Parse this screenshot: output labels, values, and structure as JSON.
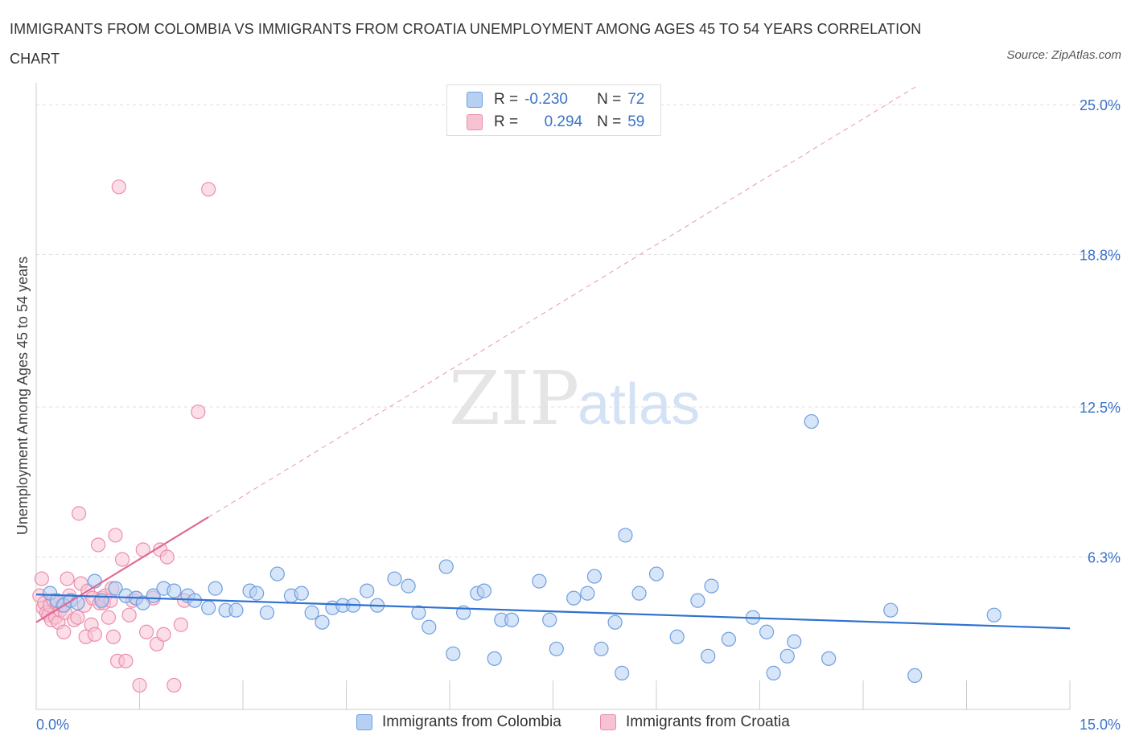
{
  "title": "IMMIGRANTS FROM COLOMBIA VS IMMIGRANTS FROM CROATIA UNEMPLOYMENT AMONG AGES 45 TO 54 YEARS CORRELATION CHART",
  "source": "Source: ZipAtlas.com",
  "watermark": {
    "zip": "ZIP",
    "atlas": "atlas"
  },
  "colors": {
    "colombia_fill": "#b7d0f2",
    "colombia_stroke": "#6f9fe0",
    "colombia_line": "#2f72d0",
    "croatia_fill": "#f7c3d3",
    "croatia_stroke": "#ec8eac",
    "croatia_line": "#e06a96",
    "axis_label": "#3b73c8",
    "grid": "#dddddd"
  },
  "legend": {
    "r_label": "R =",
    "n_label": "N =",
    "colombia": {
      "r": "-0.230",
      "n": "72"
    },
    "croatia": {
      "r": "0.294",
      "n": "59"
    }
  },
  "chart_data": {
    "type": "scatter",
    "title": "IMMIGRANTS FROM COLOMBIA VS IMMIGRANTS FROM CROATIA UNEMPLOYMENT AMONG AGES 45 TO 54 YEARS CORRELATION CHART",
    "xlabel": "",
    "ylabel": "Unemployment Among Ages 45 to 54 years",
    "xlim": [
      0,
      15
    ],
    "ylim": [
      0,
      25.9
    ],
    "x_tick_labels": {
      "min": "0.0%",
      "max": "15.0%"
    },
    "y_ticks": [
      {
        "value": 6.3,
        "label": "6.3%"
      },
      {
        "value": 12.5,
        "label": "12.5%"
      },
      {
        "value": 18.8,
        "label": "18.8%"
      },
      {
        "value": 25.0,
        "label": "25.0%"
      }
    ],
    "legend_position": "bottom",
    "series": [
      {
        "name": "Immigrants from Colombia",
        "r": -0.23,
        "n": 72,
        "trend": {
          "x0": 0.0,
          "y0": 4.75,
          "x1": 15.0,
          "y1": 3.35
        },
        "points": [
          [
            0.2,
            4.8
          ],
          [
            0.3,
            4.5
          ],
          [
            0.4,
            4.3
          ],
          [
            0.5,
            4.5
          ],
          [
            0.6,
            4.4
          ],
          [
            0.85,
            5.3
          ],
          [
            0.95,
            4.5
          ],
          [
            1.15,
            5.0
          ],
          [
            1.3,
            4.7
          ],
          [
            1.45,
            4.6
          ],
          [
            1.55,
            4.4
          ],
          [
            1.7,
            4.7
          ],
          [
            1.85,
            5.0
          ],
          [
            2.0,
            4.9
          ],
          [
            2.2,
            4.7
          ],
          [
            2.3,
            4.5
          ],
          [
            2.5,
            4.2
          ],
          [
            2.6,
            5.0
          ],
          [
            2.75,
            4.1
          ],
          [
            2.9,
            4.1
          ],
          [
            3.1,
            4.9
          ],
          [
            3.2,
            4.8
          ],
          [
            3.35,
            4.0
          ],
          [
            3.5,
            5.6
          ],
          [
            3.7,
            4.7
          ],
          [
            3.85,
            4.8
          ],
          [
            4.0,
            4.0
          ],
          [
            4.15,
            3.6
          ],
          [
            4.3,
            4.2
          ],
          [
            4.45,
            4.3
          ],
          [
            4.6,
            4.3
          ],
          [
            4.8,
            4.9
          ],
          [
            4.95,
            4.3
          ],
          [
            5.2,
            5.4
          ],
          [
            5.4,
            5.1
          ],
          [
            5.55,
            4.0
          ],
          [
            5.7,
            3.4
          ],
          [
            5.95,
            5.9
          ],
          [
            6.05,
            2.3
          ],
          [
            6.2,
            4.0
          ],
          [
            6.4,
            4.8
          ],
          [
            6.5,
            4.9
          ],
          [
            6.65,
            2.1
          ],
          [
            6.75,
            3.7
          ],
          [
            6.9,
            3.7
          ],
          [
            7.3,
            5.3
          ],
          [
            7.45,
            3.7
          ],
          [
            7.55,
            2.5
          ],
          [
            7.8,
            4.6
          ],
          [
            8.0,
            4.8
          ],
          [
            8.1,
            5.5
          ],
          [
            8.2,
            2.5
          ],
          [
            8.4,
            3.6
          ],
          [
            8.5,
            1.5
          ],
          [
            8.55,
            7.2
          ],
          [
            8.75,
            4.8
          ],
          [
            9.0,
            5.6
          ],
          [
            9.3,
            3.0
          ],
          [
            9.6,
            4.5
          ],
          [
            9.75,
            2.2
          ],
          [
            9.8,
            5.1
          ],
          [
            10.05,
            2.9
          ],
          [
            10.4,
            3.8
          ],
          [
            10.6,
            3.2
          ],
          [
            10.7,
            1.5
          ],
          [
            10.9,
            2.2
          ],
          [
            11.0,
            2.8
          ],
          [
            11.25,
            11.9
          ],
          [
            11.5,
            2.1
          ],
          [
            12.4,
            4.1
          ],
          [
            12.75,
            1.4
          ],
          [
            13.9,
            3.9
          ]
        ]
      },
      {
        "name": "Immigrants from Croatia",
        "r": 0.294,
        "n": 59,
        "trend": {
          "x0": 0.0,
          "y0": 3.6,
          "x1": 2.5,
          "y1": 7.95
        },
        "trend_ext": {
          "x0": 2.5,
          "y0": 7.95,
          "x1": 12.8,
          "y1": 25.8
        },
        "points": [
          [
            0.05,
            4.7
          ],
          [
            0.08,
            5.4
          ],
          [
            0.1,
            4.2
          ],
          [
            0.12,
            4.4
          ],
          [
            0.15,
            4.0
          ],
          [
            0.18,
            3.9
          ],
          [
            0.2,
            4.3
          ],
          [
            0.22,
            3.7
          ],
          [
            0.25,
            4.5
          ],
          [
            0.28,
            3.8
          ],
          [
            0.3,
            4.4
          ],
          [
            0.32,
            3.6
          ],
          [
            0.35,
            4.1
          ],
          [
            0.38,
            4.3
          ],
          [
            0.4,
            3.2
          ],
          [
            0.42,
            4.0
          ],
          [
            0.45,
            5.4
          ],
          [
            0.48,
            4.7
          ],
          [
            0.5,
            4.5
          ],
          [
            0.55,
            3.7
          ],
          [
            0.6,
            3.8
          ],
          [
            0.62,
            8.1
          ],
          [
            0.65,
            5.2
          ],
          [
            0.7,
            4.3
          ],
          [
            0.72,
            3.0
          ],
          [
            0.75,
            4.9
          ],
          [
            0.8,
            3.5
          ],
          [
            0.82,
            4.6
          ],
          [
            0.85,
            3.1
          ],
          [
            0.9,
            6.8
          ],
          [
            0.92,
            4.4
          ],
          [
            0.95,
            4.6
          ],
          [
            0.98,
            4.4
          ],
          [
            1.0,
            4.7
          ],
          [
            1.05,
            3.8
          ],
          [
            1.08,
            4.5
          ],
          [
            1.1,
            5.0
          ],
          [
            1.12,
            3.0
          ],
          [
            1.15,
            7.2
          ],
          [
            1.18,
            2.0
          ],
          [
            1.2,
            21.6
          ],
          [
            1.25,
            6.2
          ],
          [
            1.3,
            2.0
          ],
          [
            1.35,
            3.9
          ],
          [
            1.4,
            4.5
          ],
          [
            1.45,
            4.6
          ],
          [
            1.5,
            1.0
          ],
          [
            1.55,
            6.6
          ],
          [
            1.6,
            3.2
          ],
          [
            1.7,
            4.6
          ],
          [
            1.75,
            2.7
          ],
          [
            1.8,
            6.6
          ],
          [
            1.85,
            3.1
          ],
          [
            1.9,
            6.3
          ],
          [
            2.0,
            1.0
          ],
          [
            2.1,
            3.5
          ],
          [
            2.15,
            4.5
          ],
          [
            2.35,
            12.3
          ],
          [
            2.5,
            21.5
          ]
        ]
      }
    ]
  },
  "bottom_legend": {
    "colombia": "Immigrants from Colombia",
    "croatia": "Immigrants from Croatia"
  }
}
